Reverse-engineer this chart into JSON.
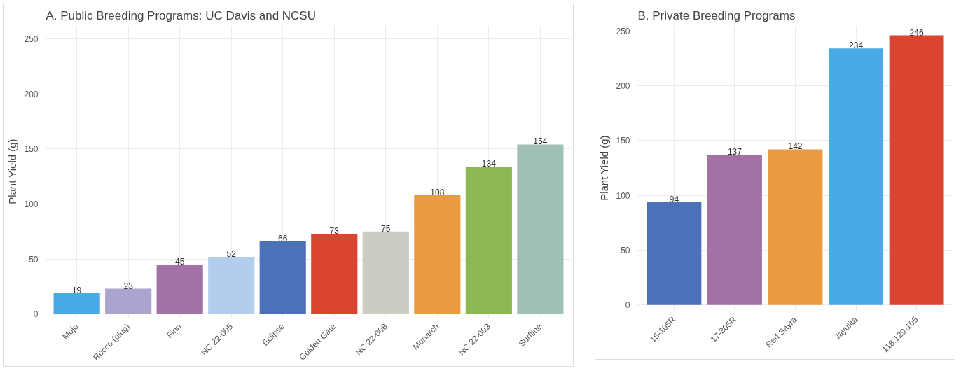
{
  "chart_data": [
    {
      "type": "bar",
      "title": "A. Public Breeding Programs: UC Davis and NCSU",
      "ylabel": "Plant Yield (g)",
      "categories": [
        "Mojo",
        "Rocco (plug)",
        "Finn",
        "NC 22-005",
        "Eclipse",
        "Golden Gate",
        "NC 22-008",
        "Monarch",
        "NC 22-003",
        "Surfline"
      ],
      "values": [
        19,
        23,
        45,
        52,
        66,
        73,
        75,
        108,
        134,
        154
      ],
      "colors": [
        "#4aaae8",
        "#a9a5cf",
        "#a171a8",
        "#b3cdee",
        "#4b72b8",
        "#dc4432",
        "#cbcdc3",
        "#eb9b3f",
        "#8bb853",
        "#a0bfb7"
      ],
      "ylim": [
        -3,
        262
      ],
      "yticks": [
        0,
        50,
        100,
        150,
        200,
        250
      ],
      "grid": true,
      "data_labels": true
    },
    {
      "type": "bar",
      "title": "B. Private Breeding Programs",
      "ylabel": "Plant Yield (g)",
      "categories": [
        "15-105R",
        "17-305R",
        "Red Sayra",
        "Jayulita",
        "118.129-105"
      ],
      "values": [
        94,
        137,
        142,
        234,
        246
      ],
      "colors": [
        "#4b72b8",
        "#a171a8",
        "#eb9b3f",
        "#4aaae8",
        "#dc4432"
      ],
      "ylim": [
        -5,
        255
      ],
      "yticks": [
        0,
        50,
        100,
        150,
        200,
        250
      ],
      "grid": true,
      "data_labels": true
    }
  ]
}
